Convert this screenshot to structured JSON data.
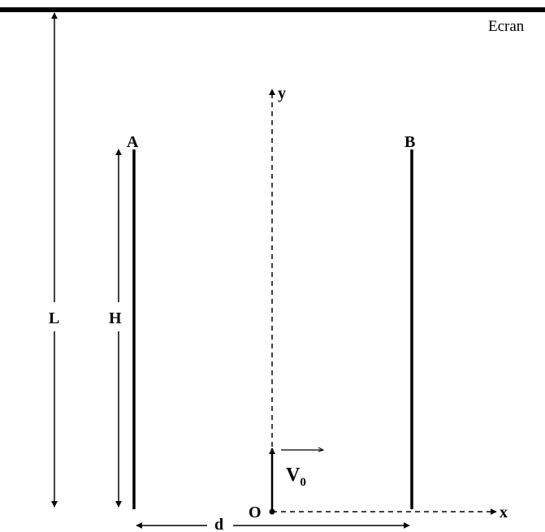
{
  "screen_label": "Ecran",
  "plate_a_label": "A",
  "plate_b_label": "B",
  "length_label": "L",
  "height_label": "H",
  "distance_label": "d",
  "origin_label": "O",
  "x_axis_label": "x",
  "y_axis_label": "y",
  "velocity_symbol": "V",
  "velocity_subscript": "0"
}
